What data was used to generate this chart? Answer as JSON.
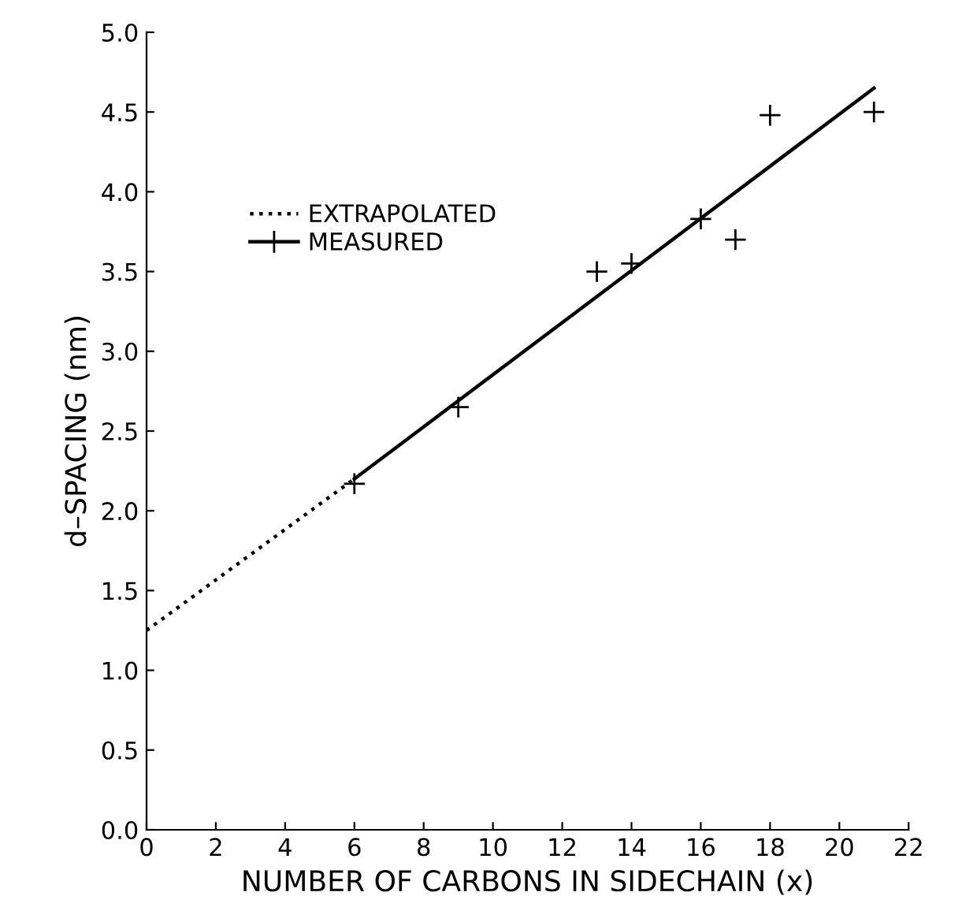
{
  "chart_data": {
    "type": "scatter",
    "xlabel": "NUMBER OF CARBONS IN SIDECHAIN (x)",
    "ylabel": "d–SPACING (nm)",
    "xlim": [
      0,
      22
    ],
    "xticks": [
      0,
      2,
      4,
      6,
      8,
      10,
      12,
      14,
      16,
      18,
      20,
      22
    ],
    "ylim": [
      0,
      5
    ],
    "yticks": [
      {
        "value": 0,
        "label": "0.0"
      },
      0.5,
      {
        "value": 1,
        "label": "1.0"
      },
      1.5,
      {
        "value": 2,
        "label": "2.0"
      },
      2.5,
      {
        "value": 3,
        "label": "3.0"
      },
      3.5,
      {
        "value": 4,
        "label": "4.0"
      },
      4.5,
      {
        "value": 5,
        "label": "5.0"
      }
    ],
    "grid": false,
    "legend": "top left",
    "series": [
      {
        "name": "EXTRAPOLATED",
        "type": "line",
        "line_style": "dotted",
        "marker": "none",
        "color": "#000000",
        "x": [
          0,
          6
        ],
        "values": [
          1.25,
          2.2
        ]
      },
      {
        "type": "line",
        "line_style": "solid",
        "marker": "none",
        "color": "#000000",
        "x": [
          6,
          21
        ],
        "values": [
          2.2,
          4.65
        ]
      },
      {
        "name": "MEASURED",
        "marker": "cross",
        "color": "#000000",
        "x": [
          6,
          9,
          13,
          14,
          16,
          17,
          18,
          21
        ],
        "values": [
          2.17,
          2.65,
          3.5,
          3.55,
          3.83,
          3.7,
          4.48,
          4.5
        ]
      }
    ]
  }
}
